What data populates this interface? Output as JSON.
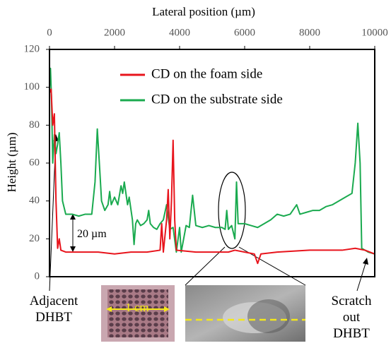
{
  "chart_data": {
    "type": "line",
    "x_label": "Lateral position (µm)",
    "y_label": "Height (µm)",
    "xlim": [
      0,
      10000
    ],
    "xticks": [
      0,
      2000,
      4000,
      6000,
      8000,
      10000
    ],
    "ylim": [
      0,
      120
    ],
    "yticks": [
      0,
      20,
      40,
      60,
      80,
      100,
      120
    ],
    "legend": "top",
    "series": [
      {
        "name": "CD on the foam side",
        "color": "#e8141c",
        "x": [
          0,
          50,
          100,
          150,
          200,
          250,
          300,
          350,
          500,
          1000,
          1500,
          2000,
          2500,
          3000,
          3400,
          3450,
          3500,
          3600,
          3650,
          3700,
          3750,
          3800,
          3850,
          3900,
          4500,
          5000,
          5500,
          5700,
          6000,
          6300,
          6400,
          6500,
          7000,
          8000,
          9000,
          9400,
          9700,
          10000
        ],
        "values": [
          97,
          99,
          80,
          86,
          40,
          15,
          20,
          14,
          13,
          13,
          13,
          12,
          13,
          13,
          14,
          28,
          13,
          30,
          46,
          20,
          40,
          72,
          30,
          14,
          13,
          13,
          13,
          14,
          13,
          12,
          7,
          12,
          13,
          14,
          14,
          15,
          14,
          12
        ]
      },
      {
        "name": "CD on the substrate side",
        "color": "#1aaa4f",
        "x": [
          0,
          30,
          60,
          100,
          150,
          200,
          250,
          300,
          350,
          400,
          500,
          700,
          900,
          1100,
          1300,
          1400,
          1470,
          1550,
          1600,
          1700,
          1800,
          1850,
          1900,
          2000,
          2100,
          2200,
          2250,
          2300,
          2400,
          2450,
          2550,
          2600,
          2650,
          2700,
          2800,
          2900,
          3000,
          3050,
          3100,
          3200,
          3300,
          3400,
          3500,
          3600,
          3700,
          3800,
          3900,
          4000,
          4050,
          4200,
          4300,
          4400,
          4500,
          4700,
          4900,
          5100,
          5300,
          5400,
          5450,
          5500,
          5600,
          5700,
          5750,
          5800,
          6000,
          6200,
          6400,
          6600,
          6800,
          7000,
          7200,
          7400,
          7600,
          7700,
          7900,
          8100,
          8300,
          8500,
          8700,
          8900,
          9100,
          9300,
          9400,
          9480,
          9550,
          9600,
          9700,
          9800,
          10000
        ],
        "values": [
          100,
          110,
          95,
          60,
          75,
          65,
          70,
          76,
          60,
          40,
          33,
          33,
          32,
          33,
          33,
          50,
          78,
          55,
          40,
          35,
          38,
          45,
          38,
          42,
          38,
          48,
          44,
          50,
          38,
          42,
          30,
          17,
          28,
          30,
          27,
          28,
          30,
          35,
          28,
          26,
          25,
          28,
          30,
          38,
          25,
          26,
          13,
          26,
          13,
          27,
          26,
          43,
          27,
          26,
          27,
          26,
          26,
          25,
          35,
          25,
          27,
          20,
          50,
          28,
          28,
          27,
          26,
          28,
          30,
          33,
          32,
          33,
          38,
          33,
          34,
          35,
          35,
          37,
          38,
          40,
          42,
          44,
          60,
          81,
          60,
          15,
          14,
          13,
          12
        ]
      }
    ],
    "annotations": [
      {
        "text": "20 µm"
      },
      {
        "text": "Adjacent DHBT"
      },
      {
        "text": "Scratch out DHBT"
      },
      {
        "text": "1 cm"
      }
    ]
  }
}
